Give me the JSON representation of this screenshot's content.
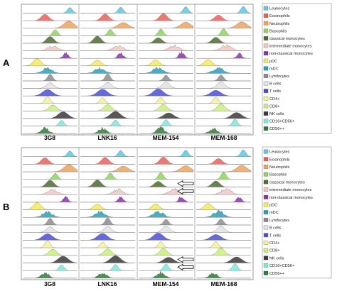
{
  "chart_data": {
    "type": "histogram-grid",
    "title": "",
    "panels": [
      {
        "letter": "A",
        "columns": [
          "3G8",
          "LNK16",
          "MEM-154",
          "MEM-168"
        ],
        "arrows": []
      },
      {
        "letter": "B",
        "columns": [
          "3G8",
          "LNK16",
          "MEM-154",
          "MEM-168"
        ],
        "arrows": [
          {
            "column": "MEM-154",
            "population": "classical monocytes"
          },
          {
            "column": "MEM-154",
            "population": "intermediate monocytes"
          },
          {
            "column": "MEM-154",
            "population": "NK cells"
          },
          {
            "column": "MEM-154",
            "population": "CD16+CD56+"
          }
        ]
      }
    ],
    "legend": [
      {
        "label": "Leukocytes",
        "color": "#5bc8e8"
      },
      {
        "label": "Eosinophils",
        "color": "#e8605a"
      },
      {
        "label": "Neutrophils",
        "color": "#f0a35c"
      },
      {
        "label": "Basophils",
        "color": "#8fd35a"
      },
      {
        "label": "classical monocytes",
        "color": "#4f6b34"
      },
      {
        "label": "intermediate monocytes",
        "color": "#f3c6c6"
      },
      {
        "label": "non-classical monocytes",
        "color": "#8a2fb0"
      },
      {
        "label": "pDC",
        "color": "#f6ea5a"
      },
      {
        "label": "mDC",
        "color": "#2a9fb8"
      },
      {
        "label": "Lymfocytes",
        "color": "#8c8c8c"
      },
      {
        "label": "B cells",
        "color": "#e2e2e2"
      },
      {
        "label": "T cells",
        "color": "#4a4fd6"
      },
      {
        "label": "CD4+",
        "color": "#f4f29a"
      },
      {
        "label": "CD8+",
        "color": "#c8ef7a"
      },
      {
        "label": "NK cells",
        "color": "#3a3a3a"
      },
      {
        "label": "CD16+CD56+",
        "color": "#7fe8d8"
      },
      {
        "label": "CD56++",
        "color": "#2f7a3a"
      }
    ],
    "peak_positions": {
      "3G8": [
        0.88,
        0.4,
        0.86,
        0.6,
        0.5,
        0.55,
        0.8,
        0.25,
        0.45,
        0.5,
        0.5,
        0.45,
        0.45,
        0.55,
        0.75,
        0.72,
        0.4
      ],
      "LNK16": [
        0.75,
        0.45,
        0.8,
        0.55,
        0.3,
        0.7,
        0.75,
        0.3,
        0.35,
        0.5,
        0.5,
        0.4,
        0.4,
        0.5,
        0.65,
        0.65,
        0.4
      ],
      "MEM-154": [
        0.88,
        0.45,
        0.88,
        0.4,
        0.35,
        0.65,
        0.8,
        0.3,
        0.35,
        0.5,
        0.5,
        0.35,
        0.4,
        0.45,
        0.55,
        0.5,
        0.4
      ],
      "MEM-168": [
        0.88,
        0.4,
        0.85,
        0.5,
        0.35,
        0.55,
        0.8,
        0.2,
        0.4,
        0.45,
        0.45,
        0.35,
        0.35,
        0.45,
        0.75,
        0.72,
        0.3
      ]
    }
  }
}
